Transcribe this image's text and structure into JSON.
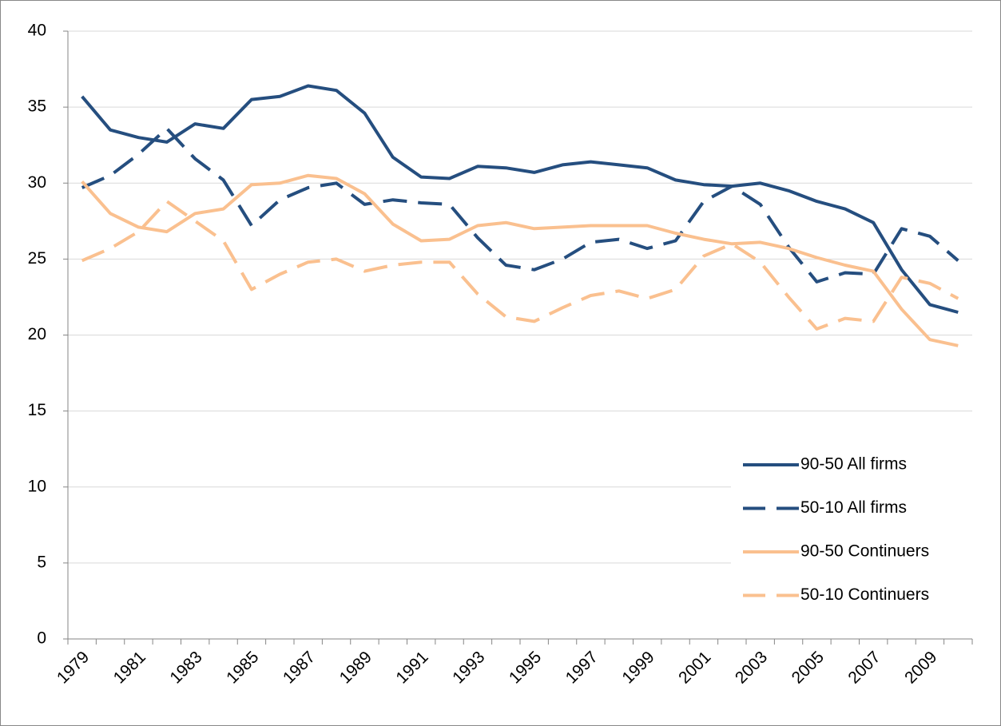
{
  "chart_data": {
    "type": "line",
    "categories": [
      "1979",
      null,
      "1981",
      null,
      "1983",
      null,
      "1985",
      null,
      "1987",
      null,
      "1989",
      null,
      "1991",
      null,
      "1993",
      null,
      "1995",
      null,
      "1997",
      null,
      "1999",
      null,
      "2001",
      null,
      "2003",
      null,
      "2005",
      null,
      "2007",
      null,
      "2009",
      null
    ],
    "series": [
      {
        "name": "90-50 All firms",
        "color": "#254e7f",
        "linestyle": "solid",
        "values": [
          35.7,
          33.5,
          33.0,
          32.7,
          33.9,
          33.6,
          35.5,
          35.7,
          36.4,
          36.1,
          34.6,
          31.7,
          30.4,
          30.3,
          31.1,
          31.0,
          30.7,
          31.2,
          31.4,
          31.2,
          31.0,
          30.2,
          29.9,
          29.8,
          30.0,
          29.5,
          28.8,
          28.3,
          27.4,
          24.3,
          22.0,
          21.5
        ]
      },
      {
        "name": "50-10 All firms",
        "color": "#254e7f",
        "linestyle": "dashed",
        "values": [
          29.7,
          30.5,
          31.9,
          33.6,
          31.6,
          30.2,
          27.2,
          28.9,
          29.7,
          30.0,
          28.6,
          28.9,
          28.7,
          28.6,
          26.4,
          24.6,
          24.3,
          25.0,
          26.1,
          26.3,
          25.7,
          26.2,
          28.8,
          29.8,
          28.6,
          25.8,
          23.5,
          24.1,
          24.0,
          27.0,
          26.5,
          24.9
        ]
      },
      {
        "name": "90-50 Continuers",
        "color": "#fac08f",
        "linestyle": "solid",
        "values": [
          30.1,
          28.0,
          27.1,
          26.8,
          28.0,
          28.3,
          29.9,
          30.0,
          30.5,
          30.3,
          29.3,
          27.3,
          26.2,
          26.3,
          27.2,
          27.4,
          27.0,
          27.1,
          27.2,
          27.2,
          27.2,
          26.7,
          26.3,
          26.0,
          26.1,
          25.7,
          25.1,
          24.6,
          24.2,
          21.7,
          19.7,
          19.3
        ]
      },
      {
        "name": "50-10 Continuers",
        "color": "#fac08f",
        "linestyle": "dashed",
        "values": [
          24.9,
          25.7,
          26.8,
          28.8,
          27.5,
          26.2,
          23.0,
          24.0,
          24.8,
          25.0,
          24.2,
          24.6,
          24.8,
          24.8,
          22.7,
          21.2,
          20.9,
          21.8,
          22.6,
          22.9,
          22.4,
          23.0,
          25.2,
          26.0,
          24.8,
          22.5,
          20.4,
          21.1,
          20.9,
          23.8,
          23.4,
          22.4
        ]
      }
    ],
    "ylim": [
      0,
      40
    ],
    "yticks": [
      0,
      5,
      10,
      15,
      20,
      25,
      30,
      35,
      40
    ],
    "grid": true,
    "legend": "lower right"
  }
}
